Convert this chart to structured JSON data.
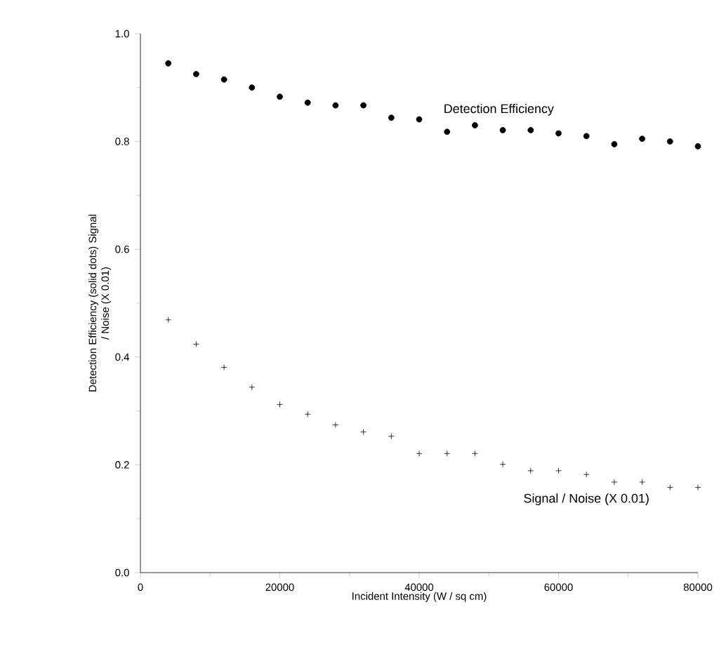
{
  "chart_data": {
    "type": "scatter",
    "xlabel": "Incident Intensity (W / sq cm)",
    "ylabel": "Detection Efficiency (solid dots) Signal / Noise (X 0.01)",
    "x": [
      4000,
      8000,
      12000,
      16000,
      20000,
      24000,
      28000,
      32000,
      36000,
      40000,
      44000,
      48000,
      52000,
      56000,
      60000,
      64000,
      68000,
      72000,
      76000,
      80000
    ],
    "series": [
      {
        "name": "Detection Efficiency",
        "color": "#000000",
        "marker": "circle",
        "values": [
          0.945,
          0.925,
          0.915,
          0.9,
          0.883,
          0.872,
          0.867,
          0.867,
          0.844,
          0.841,
          0.818,
          0.83,
          0.821,
          0.821,
          0.815,
          0.81,
          0.795,
          0.805,
          0.8,
          0.791
        ]
      },
      {
        "name": "Signal / Noise (X 0.01)",
        "color": "#000000",
        "marker": "cross",
        "values": [
          0.469,
          0.424,
          0.381,
          0.344,
          0.312,
          0.294,
          0.274,
          0.261,
          0.253,
          0.221,
          0.221,
          0.221,
          0.201,
          0.189,
          0.189,
          0.182,
          0.168,
          0.168,
          0.158,
          0.158
        ]
      }
    ],
    "xlim": [
      0,
      80000
    ],
    "ylim": [
      0,
      1
    ],
    "xticks": [
      0,
      20000,
      40000,
      60000,
      80000
    ],
    "yticks": [
      {
        "value": 0,
        "label": "0.0"
      },
      {
        "value": 0.2,
        "label": "0.2"
      },
      {
        "value": 0.4,
        "label": "0.4"
      },
      {
        "value": 0.6,
        "label": "0.6"
      },
      {
        "value": 0.8,
        "label": "0.8"
      },
      {
        "value": 1,
        "label": "1.0"
      }
    ],
    "grid": false
  }
}
